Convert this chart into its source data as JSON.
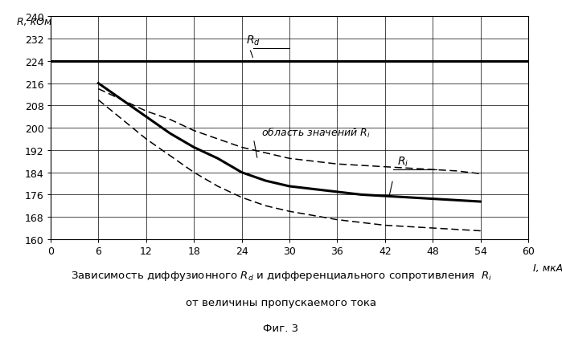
{
  "ylabel": "R, кОм",
  "xlabel": "I, мкА",
  "xlim": [
    0,
    60
  ],
  "ylim": [
    160,
    240
  ],
  "xticks": [
    0,
    6,
    12,
    18,
    24,
    30,
    36,
    42,
    48,
    54,
    60
  ],
  "yticks": [
    160,
    168,
    176,
    184,
    192,
    200,
    208,
    216,
    224,
    232,
    240
  ],
  "Rd_y": 224.0,
  "Ri_x": [
    6,
    9,
    12,
    15,
    18,
    21,
    24,
    27,
    30,
    33,
    36,
    39,
    42,
    45,
    48,
    51,
    54
  ],
  "Ri_y": [
    216,
    210,
    204,
    198,
    193,
    189,
    184,
    181,
    179,
    178,
    177,
    176,
    175.5,
    175,
    174.5,
    174,
    173.5
  ],
  "Ri_upper_x": [
    6,
    9,
    12,
    15,
    18,
    21,
    24,
    27,
    30,
    33,
    36,
    39,
    42,
    45,
    48,
    51,
    54
  ],
  "Ri_upper_y": [
    214,
    210,
    206,
    203,
    199,
    196,
    193,
    191,
    189,
    188,
    187,
    186.5,
    186,
    185.5,
    185,
    184.5,
    183.5
  ],
  "Ri_lower_x": [
    6,
    9,
    12,
    15,
    18,
    21,
    24,
    27,
    30,
    33,
    36,
    39,
    42,
    45,
    48,
    51,
    54
  ],
  "Ri_lower_y": [
    210,
    203,
    196,
    190,
    184,
    179,
    175,
    172,
    170,
    168.5,
    167,
    166,
    165,
    164.5,
    164,
    163.5,
    163
  ],
  "background_color": "#ffffff"
}
